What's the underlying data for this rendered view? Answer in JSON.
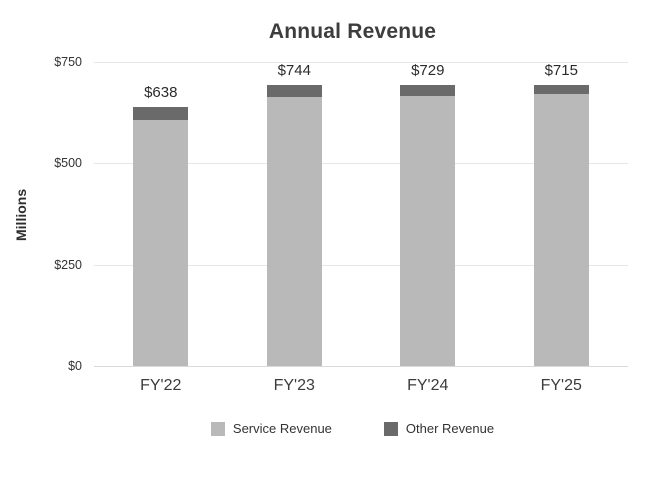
{
  "chart_data": {
    "type": "bar",
    "stacked": true,
    "title": "Annual Revenue",
    "ylabel": "Millions",
    "xlabel": "",
    "categories": [
      "FY'22",
      "FY'23",
      "FY'24",
      "FY'25"
    ],
    "series": [
      {
        "name": "Service Revenue",
        "color": "#b9b9b9",
        "values": [
          606,
          712,
          701,
          692
        ]
      },
      {
        "name": "Other Revenue",
        "color": "#6a6a6a",
        "values": [
          32,
          32,
          28,
          23
        ]
      }
    ],
    "totals": [
      638,
      744,
      729,
      715
    ],
    "total_labels": [
      "$638",
      "$744",
      "$729",
      "$715"
    ],
    "yticks": [
      0,
      250,
      500,
      750
    ],
    "ytick_labels": [
      "$0",
      "$250",
      "$500",
      "$750"
    ],
    "ylim": [
      0,
      750
    ],
    "grid": true,
    "legend_position": "bottom"
  }
}
